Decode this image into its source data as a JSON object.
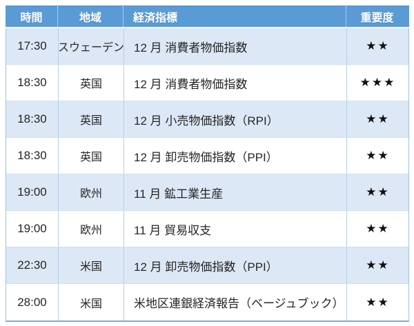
{
  "colors": {
    "header_bg": "#5b9bd5",
    "header_text": "#ffffff",
    "row_shaded_bg": "#dce8f5",
    "row_white_bg": "#ffffff",
    "outer_border": "#9cc3e5",
    "inner_border": "#b3d1ec",
    "bottom_line": "#7ea9d8",
    "cell_text": "#252525",
    "star_color": "#111111"
  },
  "table": {
    "columns": {
      "time": "時間",
      "region": "地域",
      "indicator": "経済指標",
      "importance": "重要度"
    },
    "rows": [
      {
        "time": "17:30",
        "region": "スウェーデン",
        "indicator": "12 月 消費者物価指数",
        "importance": "★★"
      },
      {
        "time": "18:30",
        "region": "英国",
        "indicator": "12 月 消費者物価指数",
        "importance": "★★★"
      },
      {
        "time": "18:30",
        "region": "英国",
        "indicator": "12 月 小売物価指数（RPI）",
        "importance": "★★"
      },
      {
        "time": "18:30",
        "region": "英国",
        "indicator": "12 月 卸売物価指数（PPI）",
        "importance": "★★"
      },
      {
        "time": "19:00",
        "region": "欧州",
        "indicator": "11 月 鉱工業生産",
        "importance": "★★"
      },
      {
        "time": "19:00",
        "region": "欧州",
        "indicator": "11 月 貿易収支",
        "importance": "★★"
      },
      {
        "time": "22:30",
        "region": "米国",
        "indicator": "12 月 卸売物価指数（PPI）",
        "importance": "★★"
      },
      {
        "time": "28:00",
        "region": "米国",
        "indicator": "米地区連銀経済報告（ベージュブック）",
        "importance": "★★"
      }
    ]
  }
}
